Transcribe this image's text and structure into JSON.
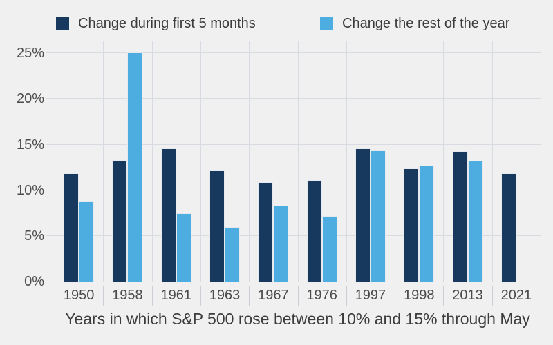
{
  "legend": {
    "items": [
      {
        "label": "Change during first 5 months",
        "color": "#17395e"
      },
      {
        "label": "Change the rest of the year",
        "color": "#4dade1"
      }
    ]
  },
  "chart_data": {
    "type": "bar",
    "categories": [
      "1950",
      "1958",
      "1961",
      "1963",
      "1967",
      "1976",
      "1997",
      "1998",
      "2013",
      "2021"
    ],
    "series": [
      {
        "name": "Change during first 5 months",
        "color": "#17395e",
        "values": [
          11.9,
          13.3,
          14.6,
          12.2,
          10.9,
          11.1,
          14.6,
          12.4,
          14.3,
          11.9
        ]
      },
      {
        "name": "Change the rest of the year",
        "color": "#4dade1",
        "values": [
          8.8,
          25.1,
          7.5,
          6.0,
          8.3,
          7.2,
          14.4,
          12.7,
          13.2,
          null
        ]
      }
    ],
    "title": "",
    "xlabel": "Years in which S&P 500 rose between 10% and 15% through May",
    "ylabel": "",
    "ylim": [
      0,
      26.3
    ],
    "yticks": [
      0,
      5,
      10,
      15,
      20,
      25
    ],
    "ytick_suffix": "%",
    "grid": true,
    "legend_position": "top"
  },
  "colors": {
    "background": "#f0f0f1",
    "gridline": "#d8dce2",
    "axis_line": "#9aa1a9",
    "bar_outline": "#e6e9ed",
    "text": "#3c3c3c",
    "axis_text": "#4a4a4a"
  }
}
